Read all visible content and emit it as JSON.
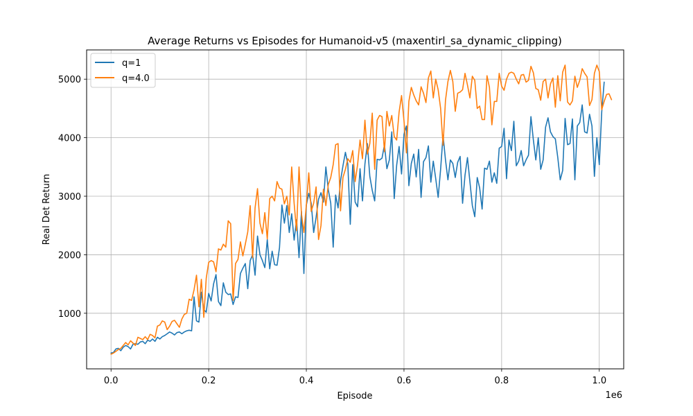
{
  "chart_data": {
    "type": "line",
    "title": "Average Returns vs Episodes for Humanoid-v5 (maxentirl_sa_dynamic_clipping)",
    "xlabel": "Episode",
    "ylabel": "Real Det Return",
    "x_offset_label": "1e6",
    "xlim": [
      -50000,
      1050000
    ],
    "ylim": [
      50,
      5500
    ],
    "xticks": [
      0,
      200000,
      400000,
      600000,
      800000,
      1000000
    ],
    "xtick_labels": [
      "0.0",
      "0.2",
      "0.4",
      "0.6",
      "0.8",
      "1.0"
    ],
    "yticks": [
      1000,
      2000,
      3000,
      4000,
      5000
    ],
    "ytick_labels": [
      "1000",
      "2000",
      "3000",
      "4000",
      "5000"
    ],
    "grid": true,
    "legend_position": "upper-left",
    "x_start": 0,
    "x_step": 5000,
    "series": [
      {
        "name": "q=1",
        "color": "#1f77b4",
        "values": [
          320,
          330,
          390,
          400,
          360,
          420,
          450,
          430,
          390,
          470,
          480,
          470,
          510,
          520,
          480,
          540,
          520,
          560,
          520,
          590,
          560,
          600,
          620,
          650,
          680,
          660,
          630,
          670,
          680,
          650,
          680,
          700,
          710,
          700,
          1280,
          870,
          850,
          1360,
          1060,
          1020,
          1340,
          1210,
          1500,
          1660,
          1200,
          1130,
          1520,
          1360,
          1320,
          1330,
          1150,
          1280,
          1270,
          1680,
          1770,
          1850,
          1420,
          1900,
          2000,
          1650,
          2320,
          2000,
          1900,
          1780,
          2260,
          1760,
          2060,
          1830,
          1820,
          2120,
          2850,
          2540,
          2840,
          2380,
          2700,
          2250,
          2600,
          1950,
          2740,
          1680,
          2850,
          3050,
          2880,
          2380,
          2640,
          2950,
          3060,
          2900,
          3500,
          3110,
          2880,
          2130,
          3020,
          2800,
          3260,
          3520,
          3750,
          3550,
          2520,
          3540,
          2900,
          2820,
          3470,
          2920,
          3550,
          3900,
          3340,
          3100,
          2920,
          3630,
          3620,
          3650,
          3880,
          3470,
          3620,
          4100,
          2960,
          3530,
          3850,
          3380,
          4060,
          4200,
          3180,
          3560,
          3720,
          3330,
          3800,
          2980,
          3590,
          3660,
          3860,
          3240,
          3600,
          3300,
          2980,
          3460,
          4040,
          3620,
          3280,
          3620,
          3560,
          3320,
          3580,
          3680,
          2880,
          3360,
          3660,
          3250,
          2840,
          2650,
          3320,
          3140,
          2780,
          3480,
          3460,
          3600,
          3240,
          3400,
          3220,
          3820,
          3850,
          4160,
          3300,
          3960,
          3780,
          4280,
          3520,
          3600,
          3780,
          3520,
          3620,
          3700,
          4360,
          3960,
          3620,
          4000,
          3460,
          3620,
          4180,
          4340,
          4100,
          4020,
          3980,
          3660,
          3280,
          3440,
          4330,
          3880,
          3900,
          4320,
          3280,
          4200,
          4260,
          4560,
          4100,
          4080,
          4400,
          4200,
          3340,
          4000,
          3540,
          4440,
          4950
        ]
      },
      {
        "name": "q=4.0",
        "color": "#ff7f0e",
        "values": [
          300,
          320,
          350,
          380,
          400,
          450,
          500,
          460,
          530,
          490,
          450,
          590,
          570,
          550,
          600,
          550,
          640,
          620,
          580,
          780,
          800,
          870,
          850,
          720,
          780,
          860,
          880,
          820,
          760,
          900,
          980,
          1000,
          1240,
          1220,
          1400,
          1650,
          1110,
          1580,
          930,
          1600,
          1870,
          1900,
          1880,
          1710,
          2100,
          2080,
          2180,
          2130,
          2580,
          2530,
          1220,
          1850,
          1920,
          2220,
          1980,
          2180,
          2390,
          2840,
          1950,
          2800,
          3130,
          2540,
          2360,
          2720,
          2270,
          2960,
          3000,
          2920,
          3250,
          3140,
          3120,
          2870,
          3000,
          2680,
          3500,
          2880,
          2410,
          3500,
          2700,
          2380,
          2850,
          3400,
          2740,
          2880,
          3160,
          2260,
          2500,
          3120,
          2840,
          3200,
          3320,
          3540,
          3880,
          3900,
          2750,
          3320,
          3460,
          3640,
          3580,
          3780,
          3250,
          3540,
          3960,
          3640,
          4300,
          3720,
          3900,
          4420,
          3460,
          4300,
          4380,
          4360,
          3760,
          4450,
          4200,
          4380,
          4020,
          3960,
          4440,
          4720,
          4290,
          3740,
          4620,
          4860,
          4730,
          4630,
          4560,
          4870,
          4760,
          4600,
          5020,
          5140,
          4680,
          5000,
          4820,
          4500,
          3870,
          4640,
          4960,
          5150,
          4960,
          4450,
          4760,
          4780,
          4820,
          5100,
          4900,
          4680,
          5050,
          4980,
          4500,
          4540,
          4310,
          4310,
          5060,
          4860,
          4220,
          4620,
          4620,
          5100,
          4880,
          4810,
          5000,
          5100,
          5120,
          5100,
          5000,
          4920,
          5070,
          5080,
          4950,
          4980,
          5220,
          5110,
          4840,
          4820,
          4640,
          4960,
          5000,
          4680,
          4920,
          5020,
          4520,
          5060,
          4630,
          5120,
          5240,
          4610,
          4560,
          4630,
          5050,
          4860,
          4980,
          5180,
          5100,
          5040,
          4550,
          4650,
          5100,
          5240,
          5130,
          4480,
          4620,
          4740,
          4750,
          4650
        ]
      }
    ]
  }
}
